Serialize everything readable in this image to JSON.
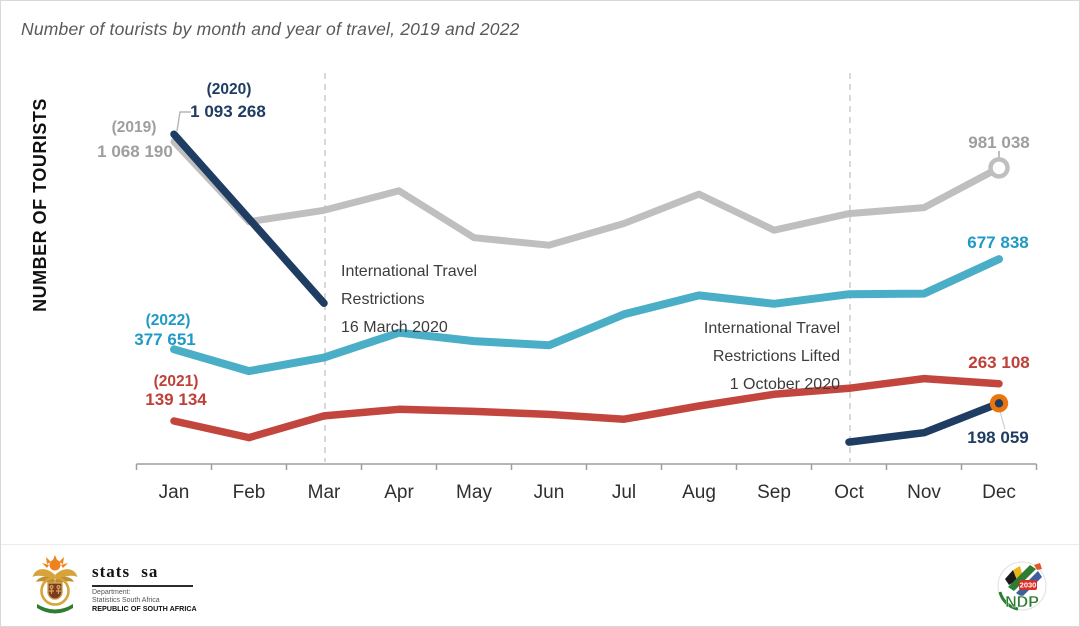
{
  "page": {
    "title": "Number of tourists by month and year of travel, 2019 and 2022"
  },
  "chart_data": {
    "type": "line",
    "title": "Number of tourists by month and year of travel, 2019 and 2022",
    "xlabel": "",
    "ylabel": "NUMBER OF TOURISTS",
    "months": [
      "Jan",
      "Feb",
      "Mar",
      "Apr",
      "May",
      "Jun",
      "Jul",
      "Aug",
      "Sep",
      "Oct",
      "Nov",
      "Dec"
    ],
    "y_axis": {
      "min": 0,
      "max_approx": 1200000,
      "gridlines": false,
      "tick_labels_shown": false
    },
    "restriction_month_indices": [
      2,
      9
    ],
    "series": [
      {
        "name": "2019",
        "color": "#bfbfbf",
        "text_color": "#9e9e9e",
        "month_index": [
          0,
          1,
          2,
          3,
          4,
          5,
          6,
          7,
          8,
          9,
          10,
          11
        ],
        "values": [
          1068190,
          802000,
          840000,
          905000,
          749000,
          724000,
          796000,
          894000,
          774000,
          829000,
          849000,
          981038
        ],
        "jan_year_label": "(2019)",
        "jan_value_label": "1 068 190",
        "dec_value_label": "981 038",
        "dec_marker": "open-ring"
      },
      {
        "name": "2020",
        "color": "#1f3c63",
        "text_color": "#1f3c63",
        "segments": [
          {
            "month_index": [
              0,
              2
            ],
            "values": [
              1093268,
              531000
            ]
          },
          {
            "month_index": [
              9,
              10,
              11
            ],
            "values": [
              69000,
              100000,
              198059
            ]
          }
        ],
        "jan_year_label": "(2020)",
        "jan_value_label": "1 093 268",
        "dec_value_label": "198 059",
        "dec_marker": "orange-dot"
      },
      {
        "name": "2021",
        "color": "#c2463e",
        "text_color": "#bf4038",
        "month_index": [
          0,
          1,
          2,
          3,
          4,
          5,
          6,
          7,
          8,
          9,
          10,
          11
        ],
        "values": [
          139134,
          84000,
          156000,
          178000,
          171000,
          161000,
          145000,
          189000,
          228000,
          248000,
          280000,
          263108
        ],
        "jan_year_label": "(2021)",
        "jan_value_label": "139 134",
        "dec_value_label": "263 108",
        "dec_marker": "none"
      },
      {
        "name": "2022",
        "color": "#4aaec6",
        "text_color": "#2099c6",
        "month_index": [
          0,
          1,
          2,
          3,
          4,
          5,
          6,
          7,
          8,
          9,
          10,
          11
        ],
        "values": [
          377651,
          305000,
          350000,
          433000,
          405000,
          391000,
          494000,
          557000,
          529000,
          561000,
          563000,
          677838
        ],
        "jan_year_label": "(2022)",
        "jan_value_label": "377 651",
        "dec_value_label": "677 838",
        "dec_marker": "none"
      }
    ],
    "annotations": [
      {
        "lines": [
          "International Travel",
          "Restrictions",
          "16 March 2020"
        ],
        "align": "left"
      },
      {
        "lines": [
          "International Travel",
          "Restrictions Lifted",
          "1 October 2020"
        ],
        "align": "right"
      }
    ],
    "marker_colors": {
      "orange": "#e8750e",
      "ring_fill": "#ffffff"
    },
    "style_colors": {
      "dashed_line": "#cfcfcf",
      "axis": "#9e9e9e",
      "annotation_text": "#3c3c3c",
      "title_text": "#595959"
    }
  },
  "footer": {
    "statssa": {
      "wordmark": "stats sa",
      "dept_line1": "Department:",
      "dept_line2": "Statistics South Africa",
      "dept_line3": "REPUBLIC OF SOUTH AFRICA"
    },
    "ndp": {
      "acronym": "NDP",
      "year": "2030"
    }
  }
}
